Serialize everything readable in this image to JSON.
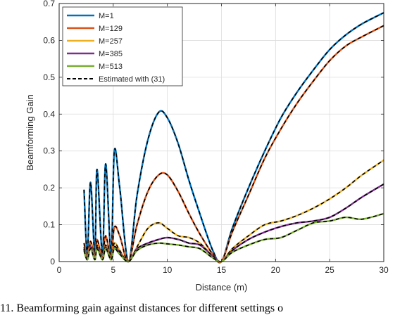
{
  "chart_data": {
    "type": "line",
    "title": "",
    "xlabel": "Distance (m)",
    "ylabel": "Beamforming Gain",
    "xlim": [
      0,
      30
    ],
    "ylim": [
      0,
      0.7
    ],
    "xticks": [
      0,
      5,
      10,
      15,
      20,
      25,
      30
    ],
    "yticks": [
      0,
      0.1,
      0.2,
      0.3,
      0.4,
      0.5,
      0.6,
      0.7
    ],
    "xtick_labels": [
      "0",
      "5",
      "10",
      "15",
      "20",
      "25",
      "30"
    ],
    "ytick_labels": [
      "0",
      "0.1",
      "0.2",
      "0.3",
      "0.4",
      "0.5",
      "0.6",
      "0.7"
    ],
    "grid": true,
    "legend_position": "top-left",
    "series": [
      {
        "name": "M=1",
        "color": "#0072BD",
        "x": [
          2.3,
          2.6,
          2.9,
          3.3,
          3.5,
          4.0,
          4.3,
          4.8,
          5.1,
          5.6,
          6.4,
          7.2,
          8.2,
          9.2,
          10.0,
          11.0,
          12.0,
          13.0,
          14.2,
          15.0,
          16.0,
          17.5,
          19.0,
          20.5,
          22.0,
          23.5,
          25.0,
          26.5,
          28.0,
          30.0
        ],
        "y": [
          0.195,
          0.02,
          0.215,
          0.02,
          0.25,
          0.02,
          0.265,
          0.02,
          0.3,
          0.2,
          0.0,
          0.18,
          0.33,
          0.405,
          0.39,
          0.32,
          0.22,
          0.13,
          0.03,
          0.0,
          0.09,
          0.2,
          0.3,
          0.39,
          0.46,
          0.52,
          0.575,
          0.615,
          0.645,
          0.675
        ]
      },
      {
        "name": "M=129",
        "color": "#D95319",
        "x": [
          2.3,
          2.6,
          2.9,
          3.3,
          3.5,
          4.0,
          4.3,
          4.8,
          5.1,
          5.6,
          6.4,
          7.2,
          8.2,
          9.2,
          10.0,
          11.0,
          12.0,
          13.0,
          14.2,
          15.0,
          16.0,
          17.5,
          19.0,
          20.5,
          22.0,
          23.5,
          25.0,
          26.5,
          28.0,
          30.0
        ],
        "y": [
          0.05,
          0.01,
          0.055,
          0.01,
          0.06,
          0.01,
          0.07,
          0.01,
          0.093,
          0.07,
          0.0,
          0.1,
          0.19,
          0.235,
          0.235,
          0.19,
          0.13,
          0.075,
          0.02,
          0.0,
          0.08,
          0.18,
          0.28,
          0.36,
          0.43,
          0.49,
          0.545,
          0.585,
          0.61,
          0.64
        ]
      },
      {
        "name": "M=257",
        "color": "#EDB120",
        "x": [
          2.3,
          2.6,
          2.9,
          3.3,
          3.5,
          4.0,
          4.3,
          4.8,
          5.1,
          5.6,
          6.4,
          7.2,
          8.2,
          9.2,
          10.0,
          11.0,
          12.0,
          13.0,
          14.2,
          15.0,
          16.0,
          17.5,
          19.0,
          20.5,
          22.0,
          23.5,
          25.0,
          26.5,
          28.0,
          30.0
        ],
        "y": [
          0.04,
          0.005,
          0.045,
          0.005,
          0.045,
          0.005,
          0.045,
          0.005,
          0.05,
          0.03,
          0.0,
          0.04,
          0.09,
          0.105,
          0.09,
          0.07,
          0.065,
          0.05,
          0.015,
          0.0,
          0.035,
          0.07,
          0.1,
          0.11,
          0.125,
          0.145,
          0.17,
          0.2,
          0.235,
          0.275
        ]
      },
      {
        "name": "M=385",
        "color": "#7E2F8E",
        "x": [
          2.3,
          2.6,
          2.9,
          3.3,
          3.5,
          4.0,
          4.3,
          4.8,
          5.1,
          5.6,
          6.4,
          7.2,
          8.2,
          9.2,
          10.0,
          11.0,
          12.0,
          13.0,
          14.2,
          15.0,
          16.0,
          17.5,
          19.0,
          20.5,
          22.0,
          23.5,
          25.0,
          26.5,
          28.0,
          30.0
        ],
        "y": [
          0.035,
          0.005,
          0.04,
          0.005,
          0.04,
          0.005,
          0.04,
          0.005,
          0.04,
          0.025,
          0.0,
          0.035,
          0.05,
          0.06,
          0.065,
          0.06,
          0.05,
          0.045,
          0.015,
          0.0,
          0.03,
          0.06,
          0.08,
          0.095,
          0.105,
          0.11,
          0.12,
          0.145,
          0.175,
          0.21
        ]
      },
      {
        "name": "M=513",
        "color": "#77AC30",
        "x": [
          2.3,
          2.6,
          2.9,
          3.3,
          3.5,
          4.0,
          4.3,
          4.8,
          5.1,
          5.6,
          6.4,
          7.2,
          8.2,
          9.2,
          10.0,
          11.0,
          12.0,
          13.0,
          14.2,
          15.0,
          16.0,
          17.5,
          19.0,
          20.5,
          22.0,
          23.5,
          25.0,
          26.5,
          28.0,
          30.0
        ],
        "y": [
          0.03,
          0.005,
          0.035,
          0.005,
          0.035,
          0.005,
          0.035,
          0.005,
          0.035,
          0.02,
          0.0,
          0.03,
          0.045,
          0.05,
          0.048,
          0.045,
          0.04,
          0.035,
          0.01,
          0.0,
          0.025,
          0.045,
          0.06,
          0.065,
          0.085,
          0.105,
          0.11,
          0.12,
          0.115,
          0.13
        ]
      }
    ],
    "estimated_legend_label": "Estimated with (31)",
    "estimated_color": "#000000"
  },
  "caption": "11.   Beamforming gain against distances for different settings o"
}
